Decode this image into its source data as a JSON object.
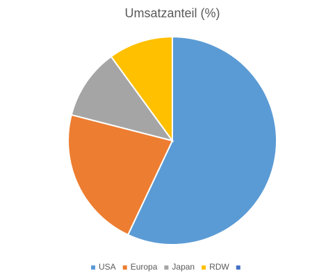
{
  "chart_data": {
    "type": "pie",
    "title": "Umsatzanteil (%)",
    "categories": [
      "USA",
      "Europa",
      "Japan",
      "RDW",
      null
    ],
    "values": [
      57,
      22,
      11,
      10,
      0
    ],
    "colors": [
      "#5b9bd5",
      "#ed7d31",
      "#a5a5a5",
      "#ffc000",
      "#4472c4"
    ],
    "legend": "bottom"
  }
}
